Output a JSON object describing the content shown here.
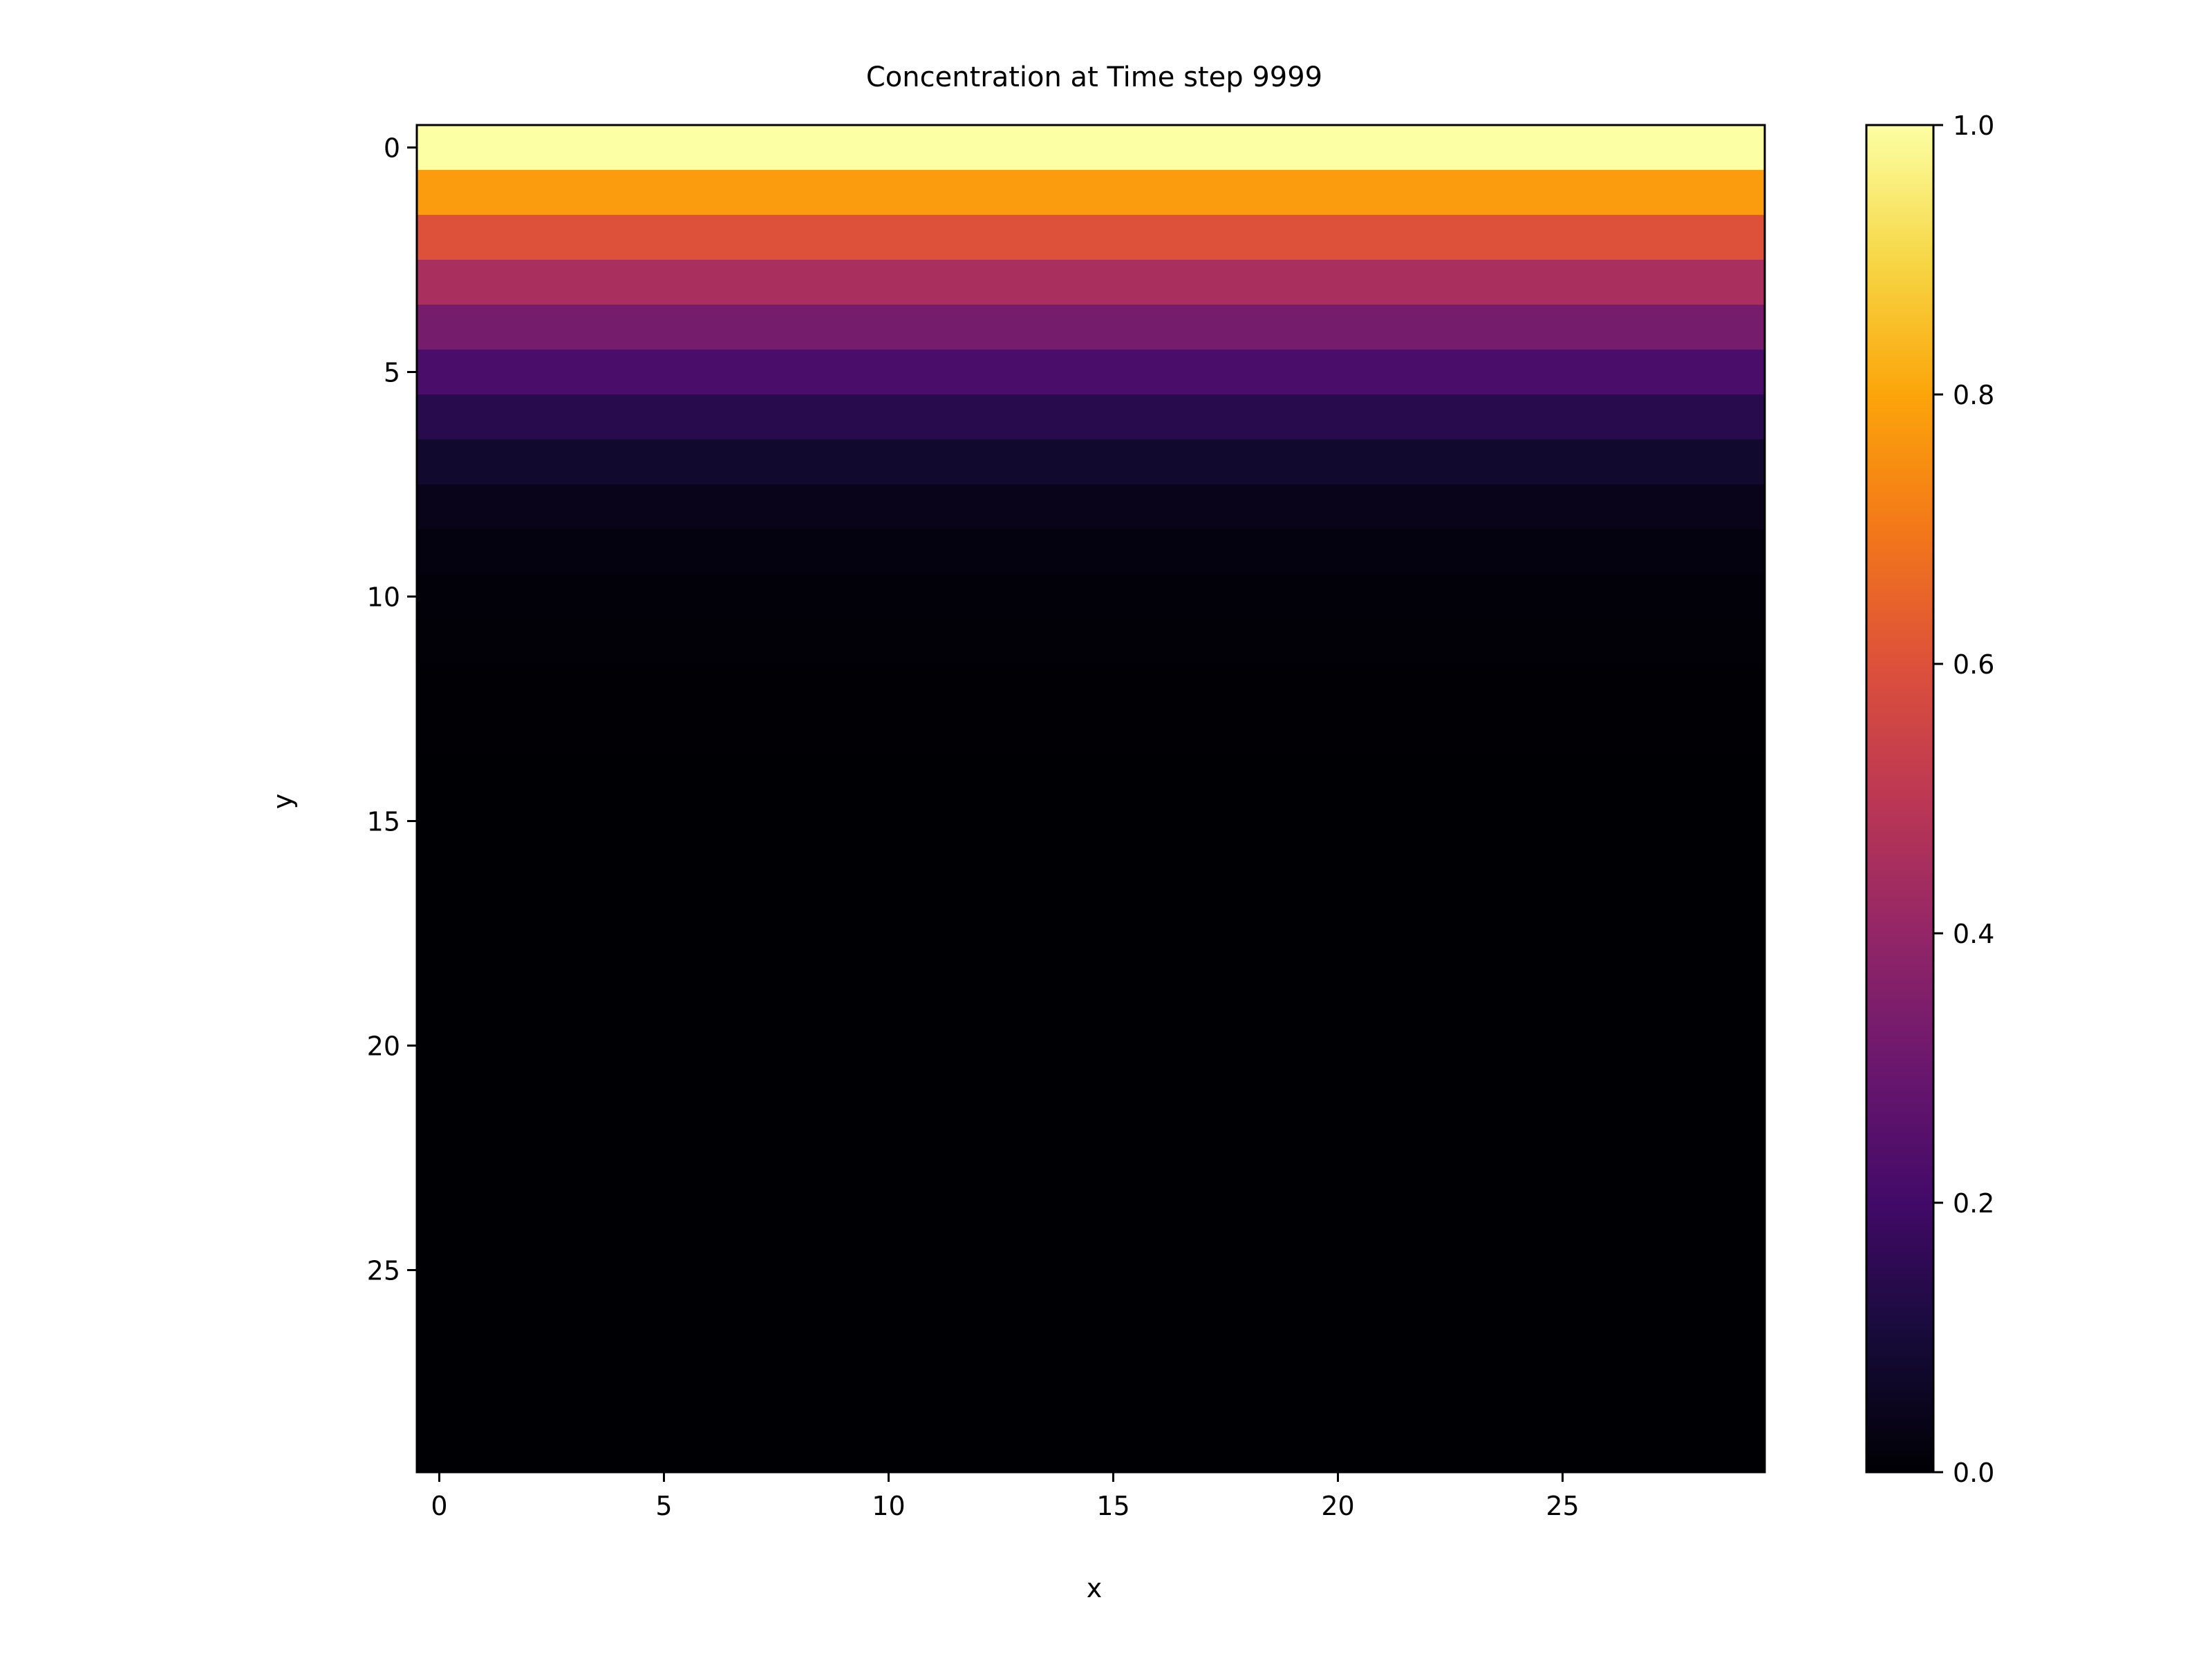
{
  "chart_data": {
    "type": "heatmap",
    "title": "Concentration at Time step 9999",
    "xlabel": "x",
    "ylabel": "y",
    "grid": false,
    "colormap": "inferno",
    "nx": 30,
    "ny": 30,
    "x_ticks": [
      0,
      5,
      10,
      15,
      20,
      25
    ],
    "y_ticks": [
      0,
      5,
      10,
      15,
      20,
      25
    ],
    "xlim": [
      -0.5,
      29.5
    ],
    "ylim": [
      29.5,
      -0.5
    ],
    "row_values": [
      1.0,
      0.78,
      0.6,
      0.45,
      0.33,
      0.22,
      0.14,
      0.08,
      0.04,
      0.02,
      0.01,
      0.005,
      0.002,
      0.001,
      0,
      0,
      0,
      0,
      0,
      0,
      0,
      0,
      0,
      0,
      0,
      0,
      0,
      0,
      0,
      0
    ],
    "colorbar": {
      "range": [
        0.0,
        1.0
      ],
      "ticks": [
        "0.0",
        "0.2",
        "0.4",
        "0.6",
        "0.8",
        "1.0"
      ],
      "tick_values": [
        0.0,
        0.2,
        0.4,
        0.6,
        0.8,
        1.0
      ]
    }
  }
}
